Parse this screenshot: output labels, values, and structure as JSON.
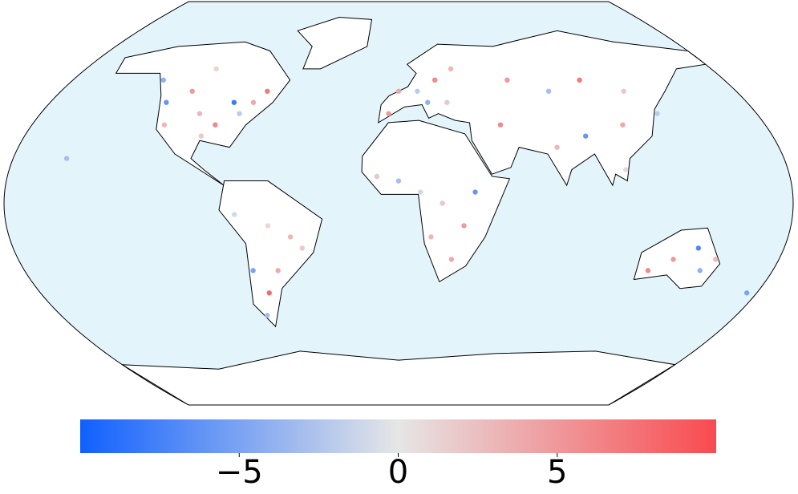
{
  "chart_data": {
    "type": "scatter_map",
    "colormap": [
      "#1060ff",
      "#e6e6e6",
      "#f94a4f"
    ],
    "clim": [
      -10,
      10
    ],
    "ticks": [
      {
        "value": -5,
        "label": "−5"
      },
      0,
      5
    ],
    "points": {
      "lon": [
        -100,
        -90,
        -80,
        -110,
        -120,
        -75,
        -95,
        -85,
        -105,
        -130,
        -70,
        -115,
        -60,
        -50,
        -70,
        -65,
        -45,
        -75,
        -58,
        -70,
        0,
        10,
        20,
        30,
        -5,
        15,
        25,
        60,
        80,
        100,
        120,
        90,
        110,
        75,
        130,
        50,
        105,
        0,
        20,
        30,
        10,
        25,
        35,
        15,
        -10,
        130,
        145,
        120,
        150,
        140,
        175,
        -155
      ],
      "lat": [
        40,
        35,
        40,
        50,
        45,
        45,
        30,
        45,
        60,
        55,
        50,
        35,
        -10,
        -15,
        -30,
        -40,
        -20,
        -5,
        -30,
        -50,
        50,
        50,
        55,
        60,
        40,
        45,
        45,
        55,
        50,
        55,
        50,
        30,
        35,
        25,
        40,
        35,
        15,
        10,
        0,
        -10,
        5,
        -25,
        5,
        -15,
        12,
        -25,
        -30,
        -30,
        -25,
        -20,
        -40,
        20
      ],
      "values": [
        3,
        6,
        -2,
        5,
        -6,
        4,
        2,
        -8,
        1,
        -4,
        7,
        3,
        1,
        3,
        -5,
        8,
        2,
        -1,
        4,
        -3,
        4,
        -2,
        6,
        3,
        5,
        -4,
        2,
        5,
        -3,
        7,
        2,
        -6,
        4,
        3,
        -2,
        6,
        1,
        -3,
        2,
        5,
        -1,
        4,
        -6,
        3,
        2,
        5,
        -4,
        6,
        3,
        -7,
        -5,
        -3
      ]
    }
  }
}
